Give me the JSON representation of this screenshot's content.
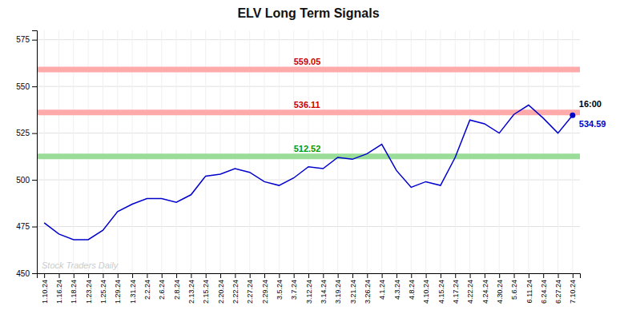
{
  "chart_data": {
    "type": "line",
    "title": "ELV Long Term Signals",
    "categories": [
      "1.10.24",
      "1.16.24",
      "1.18.24",
      "1.23.24",
      "1.25.24",
      "1.29.24",
      "1.31.24",
      "2.2.24",
      "2.6.24",
      "2.8.24",
      "2.13.24",
      "2.15.24",
      "2.20.24",
      "2.22.24",
      "2.27.24",
      "2.29.24",
      "3.5.24",
      "3.7.24",
      "3.12.24",
      "3.14.24",
      "3.19.24",
      "3.21.24",
      "3.26.24",
      "4.1.24",
      "4.3.24",
      "4.8.24",
      "4.10.24",
      "4.15.24",
      "4.17.24",
      "4.22.24",
      "4.24.24",
      "4.30.24",
      "5.6.24",
      "6.11.24",
      "6.24.24",
      "6.27.24",
      "7.10.24"
    ],
    "values": [
      477,
      471,
      468,
      468,
      473,
      483,
      487,
      490,
      490,
      488,
      492,
      502,
      503,
      506,
      504,
      499,
      497,
      501,
      507,
      506,
      512,
      511,
      514,
      519,
      505,
      496,
      499,
      497,
      512,
      532,
      530,
      525,
      535,
      540,
      533,
      525,
      534.59
    ],
    "color": "#0000cc",
    "ylim": [
      450,
      580
    ],
    "yticks": [
      450,
      475,
      500,
      525,
      550,
      575
    ],
    "grid": true,
    "reference_lines": [
      {
        "value": 559.05,
        "color": "#ffaaaa",
        "label_color": "#cc0000"
      },
      {
        "value": 536.11,
        "color": "#ffaaaa",
        "label_color": "#cc0000"
      },
      {
        "value": 512.52,
        "color": "#99dd99",
        "label_color": "#009900"
      }
    ],
    "annotations": [
      {
        "text": "16:00",
        "color": "#000000"
      },
      {
        "text": "534.59",
        "color": "#0000cc"
      }
    ],
    "watermark": {
      "text": "Stock Traders Daily",
      "color": "#cccccc"
    }
  }
}
